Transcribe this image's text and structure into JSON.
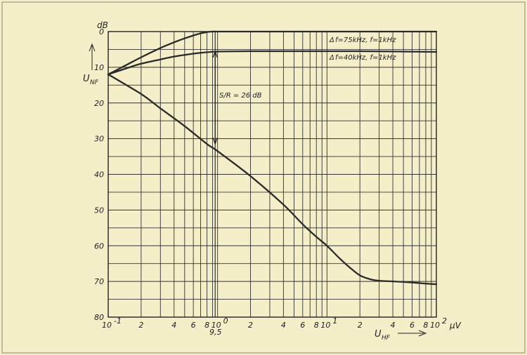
{
  "chart_data": {
    "type": "line",
    "xscale": "log",
    "xlim": [
      0.1,
      100
    ],
    "ylim": [
      0,
      80
    ],
    "y_inverted": true,
    "grid": true,
    "y_unit": "dB",
    "x_unit": "µV",
    "y_axis_label": "U",
    "y_axis_label_sub": "NF",
    "x_axis_label": "U",
    "x_axis_label_sub": "HF",
    "y_ticks": [
      "0",
      "10",
      "20",
      "30",
      "40",
      "50",
      "60",
      "70",
      "80"
    ],
    "x_tick_labels": [
      {
        "x": 0.1,
        "mant": "10",
        "exp": "-1"
      },
      {
        "x": 0.2,
        "mant": "2"
      },
      {
        "x": 0.4,
        "mant": "4"
      },
      {
        "x": 0.6,
        "mant": "6"
      },
      {
        "x": 0.8,
        "mant": "8"
      },
      {
        "x": 1,
        "mant": "10",
        "exp": "0"
      },
      {
        "x": 2,
        "mant": "2"
      },
      {
        "x": 4,
        "mant": "4"
      },
      {
        "x": 6,
        "mant": "6"
      },
      {
        "x": 8,
        "mant": "8"
      },
      {
        "x": 10,
        "mant": "10",
        "exp": "1"
      },
      {
        "x": 20,
        "mant": "2"
      },
      {
        "x": 40,
        "mant": "4"
      },
      {
        "x": 60,
        "mant": "6"
      },
      {
        "x": 80,
        "mant": "8"
      },
      {
        "x": 100,
        "mant": "10",
        "exp": "2"
      }
    ],
    "marker": {
      "x": 0.95,
      "label": "9,5"
    },
    "annotation": {
      "text": "S/R = 26 dB",
      "x": 0.95,
      "y_from": 5.5,
      "y_to": 31.5
    },
    "series": [
      {
        "name": "Δf = 75 kHz, f = 1 kHz",
        "x": [
          0.1,
          0.15,
          0.2,
          0.3,
          0.4,
          0.5,
          0.6,
          0.7,
          0.8,
          0.9,
          1,
          2,
          5,
          10,
          20,
          50,
          100
        ],
        "y": [
          12,
          9.2,
          7.2,
          4.6,
          3.0,
          1.9,
          1.1,
          0.5,
          0.15,
          0,
          0,
          0,
          0,
          0,
          0,
          0,
          0
        ]
      },
      {
        "name": "Δf = 40 kHz, f = 1 kHz",
        "x": [
          0.1,
          0.15,
          0.2,
          0.3,
          0.4,
          0.6,
          0.8,
          1,
          2,
          5,
          10,
          20,
          50,
          100
        ],
        "y": [
          12,
          10.2,
          9.0,
          7.8,
          7.0,
          6.2,
          5.8,
          5.6,
          5.5,
          5.5,
          5.5,
          5.5,
          5.6,
          5.7
        ]
      },
      {
        "name": "",
        "x": [
          0.1,
          0.2,
          0.3,
          0.5,
          0.8,
          1,
          2,
          4,
          6,
          8,
          10,
          13,
          16,
          20,
          25,
          30,
          40,
          60,
          80,
          100
        ],
        "y": [
          12,
          17.5,
          21.5,
          26.5,
          31.5,
          33.5,
          40.5,
          48.5,
          54,
          57.5,
          60,
          63.5,
          66,
          68.3,
          69.4,
          69.8,
          70,
          70.3,
          70.6,
          70.8
        ]
      }
    ],
    "series_label_text": [
      {
        "series": 0,
        "prefix": "Δ",
        "text": "f=75kHz, f=1kHz"
      },
      {
        "series": 1,
        "prefix": "Δ",
        "text": "f=40kHz, f=1kHz"
      }
    ]
  }
}
